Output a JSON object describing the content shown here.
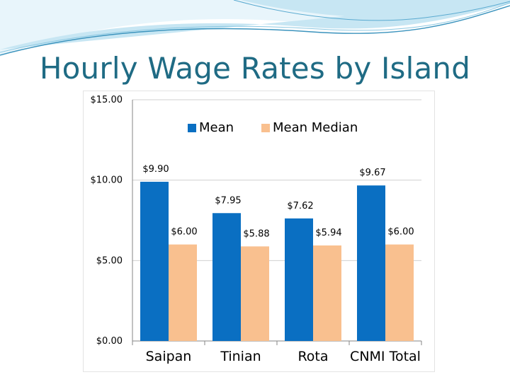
{
  "slide": {
    "title": "Hourly Wage Rates by Island"
  },
  "theme": {
    "title_color": "#1f6b84",
    "swoosh_light": "#d9eef7",
    "swoosh_mid": "#a9d7ea",
    "swoosh_dark": "#3b93bd"
  },
  "chart_data": {
    "type": "bar",
    "title": "",
    "xlabel": "",
    "ylabel": "",
    "categories": [
      "Saipan",
      "Tinian",
      "Rota",
      "CNMI Total"
    ],
    "series": [
      {
        "name": "Mean",
        "color": "#0a6fc2",
        "values": [
          9.9,
          7.95,
          7.62,
          9.67
        ],
        "labels": [
          "$9.90",
          "$7.95",
          "$7.62",
          "$9.67"
        ]
      },
      {
        "name": "Mean Median",
        "color": "#f9c08f",
        "values": [
          6.0,
          5.88,
          5.94,
          6.0
        ],
        "labels": [
          "$6.00",
          "$5.88",
          "$5.94",
          "$6.00"
        ]
      }
    ],
    "ylim": [
      0,
      15
    ],
    "yticks": [
      {
        "value": 0,
        "label": "$0.00"
      },
      {
        "value": 5,
        "label": "$5.00"
      },
      {
        "value": 10,
        "label": "$10.00"
      },
      {
        "value": 15,
        "label": "$15.00"
      }
    ],
    "grid": true,
    "legend_position": "top-center"
  }
}
